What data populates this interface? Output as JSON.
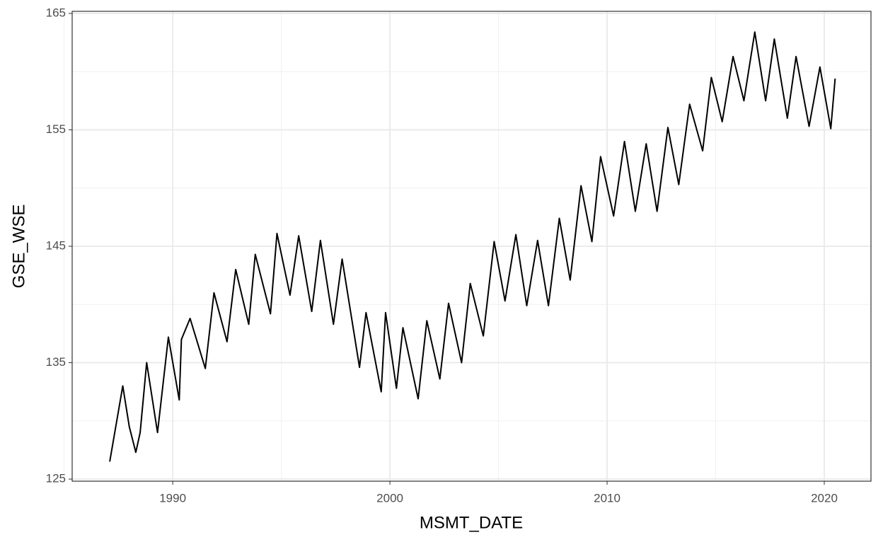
{
  "chart_data": {
    "type": "line",
    "x_label": "MSMT_DATE",
    "y_label": "GSE_WSE",
    "xlim": [
      1985.37,
      2022.15
    ],
    "ylim": [
      124.82,
      165.18
    ],
    "xticks": [
      1990,
      2000,
      2010,
      2020
    ],
    "yticks": [
      125,
      135,
      145,
      155,
      165
    ],
    "x_minor_grid": [
      1985,
      1995,
      2005,
      2015
    ],
    "y_minor_grid": [
      130,
      140,
      150,
      160
    ],
    "grid": true,
    "series": [
      {
        "color": "#000000",
        "x": [
          1987.1,
          1987.7,
          1988.0,
          1988.3,
          1988.5,
          1988.8,
          1989.3,
          1989.8,
          1990.3,
          1990.4,
          1990.8,
          1991.5,
          1991.9,
          1992.5,
          1992.9,
          1993.5,
          1993.8,
          1994.5,
          1994.8,
          1995.4,
          1995.8,
          1996.4,
          1996.8,
          1997.4,
          1997.8,
          1998.6,
          1998.9,
          1999.6,
          1999.8,
          2000.3,
          2000.6,
          2001.3,
          2001.7,
          2002.3,
          2002.7,
          2003.3,
          2003.7,
          2004.3,
          2004.8,
          2005.3,
          2005.8,
          2006.3,
          2006.8,
          2007.3,
          2007.8,
          2008.3,
          2008.8,
          2009.3,
          2009.7,
          2010.3,
          2010.8,
          2011.3,
          2011.8,
          2012.3,
          2012.8,
          2013.3,
          2013.8,
          2014.4,
          2014.8,
          2015.3,
          2015.8,
          2016.3,
          2016.8,
          2017.3,
          2017.7,
          2018.3,
          2018.7,
          2019.3,
          2019.8,
          2020.3,
          2020.5
        ],
        "values": [
          126.5,
          133.0,
          129.5,
          127.3,
          129.0,
          135.0,
          129.0,
          137.2,
          131.8,
          137.0,
          138.8,
          134.5,
          141.0,
          136.8,
          143.0,
          138.3,
          144.3,
          139.2,
          146.1,
          140.8,
          145.9,
          139.4,
          145.5,
          138.3,
          143.9,
          134.6,
          139.3,
          132.5,
          139.3,
          132.8,
          138.0,
          131.9,
          138.6,
          133.6,
          140.1,
          135.0,
          141.8,
          137.3,
          145.4,
          140.3,
          146.0,
          139.9,
          145.5,
          139.9,
          147.4,
          142.1,
          150.2,
          145.4,
          152.7,
          147.6,
          154.0,
          148.0,
          153.8,
          148.0,
          155.2,
          150.3,
          157.2,
          153.2,
          159.5,
          155.7,
          161.3,
          157.5,
          163.4,
          157.5,
          162.8,
          156.0,
          161.3,
          155.3,
          160.4,
          155.1,
          159.4
        ]
      }
    ]
  }
}
